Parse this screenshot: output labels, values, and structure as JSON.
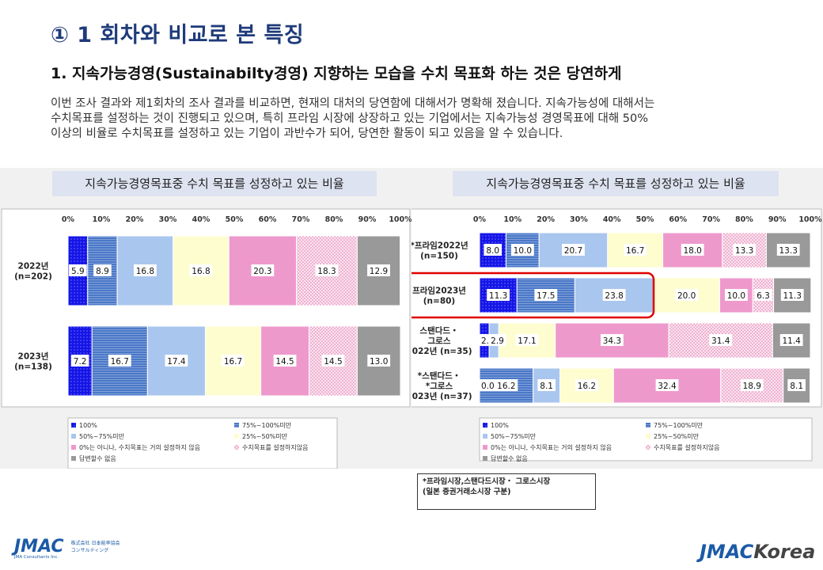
{
  "header": {
    "title": "① 1 회차와 비교로 본 특징",
    "subtitle": "1. 지속가능경영(Sustainabilty경영) 지향하는 모습을 수치 목표화 하는 것은  당연하게",
    "body": [
      "이번 조사 결과와 제1회차의 조사 결과를 비교하면, 현재의 대처의 당연함에 대해서가 명확해 졌습니다. 지속가능성에 대해서는",
      "수치목표를 설정하는 것이 진행되고 있으며, 특히 프라임 시장에 상장하고 있는 기업에서는 지속가능성 경영목표에 대해 50%",
      "이상의 비율로 수치목표를 설정하고 있는 기업이 과반수가 되어, 당연한 활동이 되고 있음을 알 수 있습니다."
    ]
  },
  "colors": {
    "accent_title": "#1f3b7a",
    "highlight": "#e00000",
    "segments": [
      "#1515e8",
      "#4a78c8",
      "#a9c6ee",
      "#fdfdcf",
      "#ee99cc",
      "#f4c7df",
      "#999999"
    ]
  },
  "legend_labels": [
    "100%",
    "75%~100%미만",
    "50%~75%미만",
    "25%~50%미만",
    "0%는 아니나, 수치목표는 거의 설정하지 않음",
    "수치목표를 설정하지않음",
    "답변할수 없음"
  ],
  "chart_data": [
    {
      "type": "bar",
      "orientation": "horizontal-stacked",
      "title": "지속가능경영목표중 수치 목표를 성정하고 있는 비율",
      "x_ticks": [
        "0%",
        "10%",
        "20%",
        "30%",
        "40%",
        "50%",
        "60%",
        "70%",
        "80%",
        "90%",
        "100%"
      ],
      "xlim": [
        0,
        100
      ],
      "categories": [
        {
          "lines": [
            "2022년",
            "(n=202)"
          ]
        },
        {
          "lines": [
            "2023년",
            "(n=138)"
          ]
        }
      ],
      "values": [
        [
          5.9,
          8.9,
          16.8,
          16.8,
          20.3,
          18.3,
          12.9
        ],
        [
          7.2,
          16.7,
          17.4,
          16.7,
          14.5,
          14.5,
          13.0
        ]
      ],
      "labels": [
        [
          "5.9",
          "8.9",
          "16.8",
          "16.8",
          "20.3",
          "18.3",
          "12.9"
        ],
        [
          "7.2",
          "16.7",
          "17.4",
          "16.7",
          "14.5",
          "14.5",
          "13.0"
        ]
      ],
      "legend": "bottom"
    },
    {
      "type": "bar",
      "orientation": "horizontal-stacked",
      "title": "지속가능경영목표중 수치 목표를 성정하고 있는 비율",
      "x_ticks": [
        "0%",
        "10%",
        "20%",
        "30%",
        "40%",
        "50%",
        "60%",
        "70%",
        "80%",
        "90%",
        "100%"
      ],
      "xlim": [
        0,
        100
      ],
      "categories": [
        {
          "lines": [
            "*프라임2022년",
            "(n=150)"
          ]
        },
        {
          "lines": [
            "프라임2023년",
            "(n=80)"
          ],
          "highlighted": true
        },
        {
          "lines": [
            "스탠다드・",
            "그로스",
            "2022년 (n=35)"
          ]
        },
        {
          "lines": [
            "*스탠다드・",
            "*그로스",
            "2023년 (n=37)"
          ]
        }
      ],
      "values": [
        [
          8.0,
          10.0,
          20.7,
          16.7,
          18.0,
          13.3,
          13.3
        ],
        [
          11.3,
          17.5,
          23.8,
          20.0,
          10.0,
          6.3,
          11.3
        ],
        [
          2.9,
          0.0,
          2.9,
          17.1,
          34.3,
          31.4,
          11.4
        ],
        [
          0.0,
          16.2,
          8.1,
          16.2,
          32.4,
          18.9,
          8.1
        ]
      ],
      "labels": [
        [
          "8.0",
          "10.0",
          "20.7",
          "16.7",
          "18.0",
          "13.3",
          "13.3"
        ],
        [
          "11.3",
          "17.5",
          "23.8",
          "20.0",
          "10.0",
          "6.3",
          "11.3"
        ],
        [
          "2.9",
          "0.0",
          "2.9",
          "17.1",
          "34.3",
          "31.4",
          "11.4"
        ],
        [
          "0.0",
          "16.2",
          "8.1",
          "16.2",
          "32.4",
          "18.9",
          "8.1"
        ]
      ],
      "legend": "bottom"
    }
  ],
  "footnote": {
    "lines": [
      "*프라임시장,스탠다드시장・ 그로스시장",
      "(일본 증권거래소시장 구분)"
    ]
  },
  "logos": {
    "left_main": "JMAC",
    "left_sub1": "株式会社 日本能率協会",
    "left_sub2": "コンサルティング",
    "left_sub3": "JMA Consultants Inc.",
    "right_main": "JMAC",
    "right_suffix": "Korea"
  }
}
